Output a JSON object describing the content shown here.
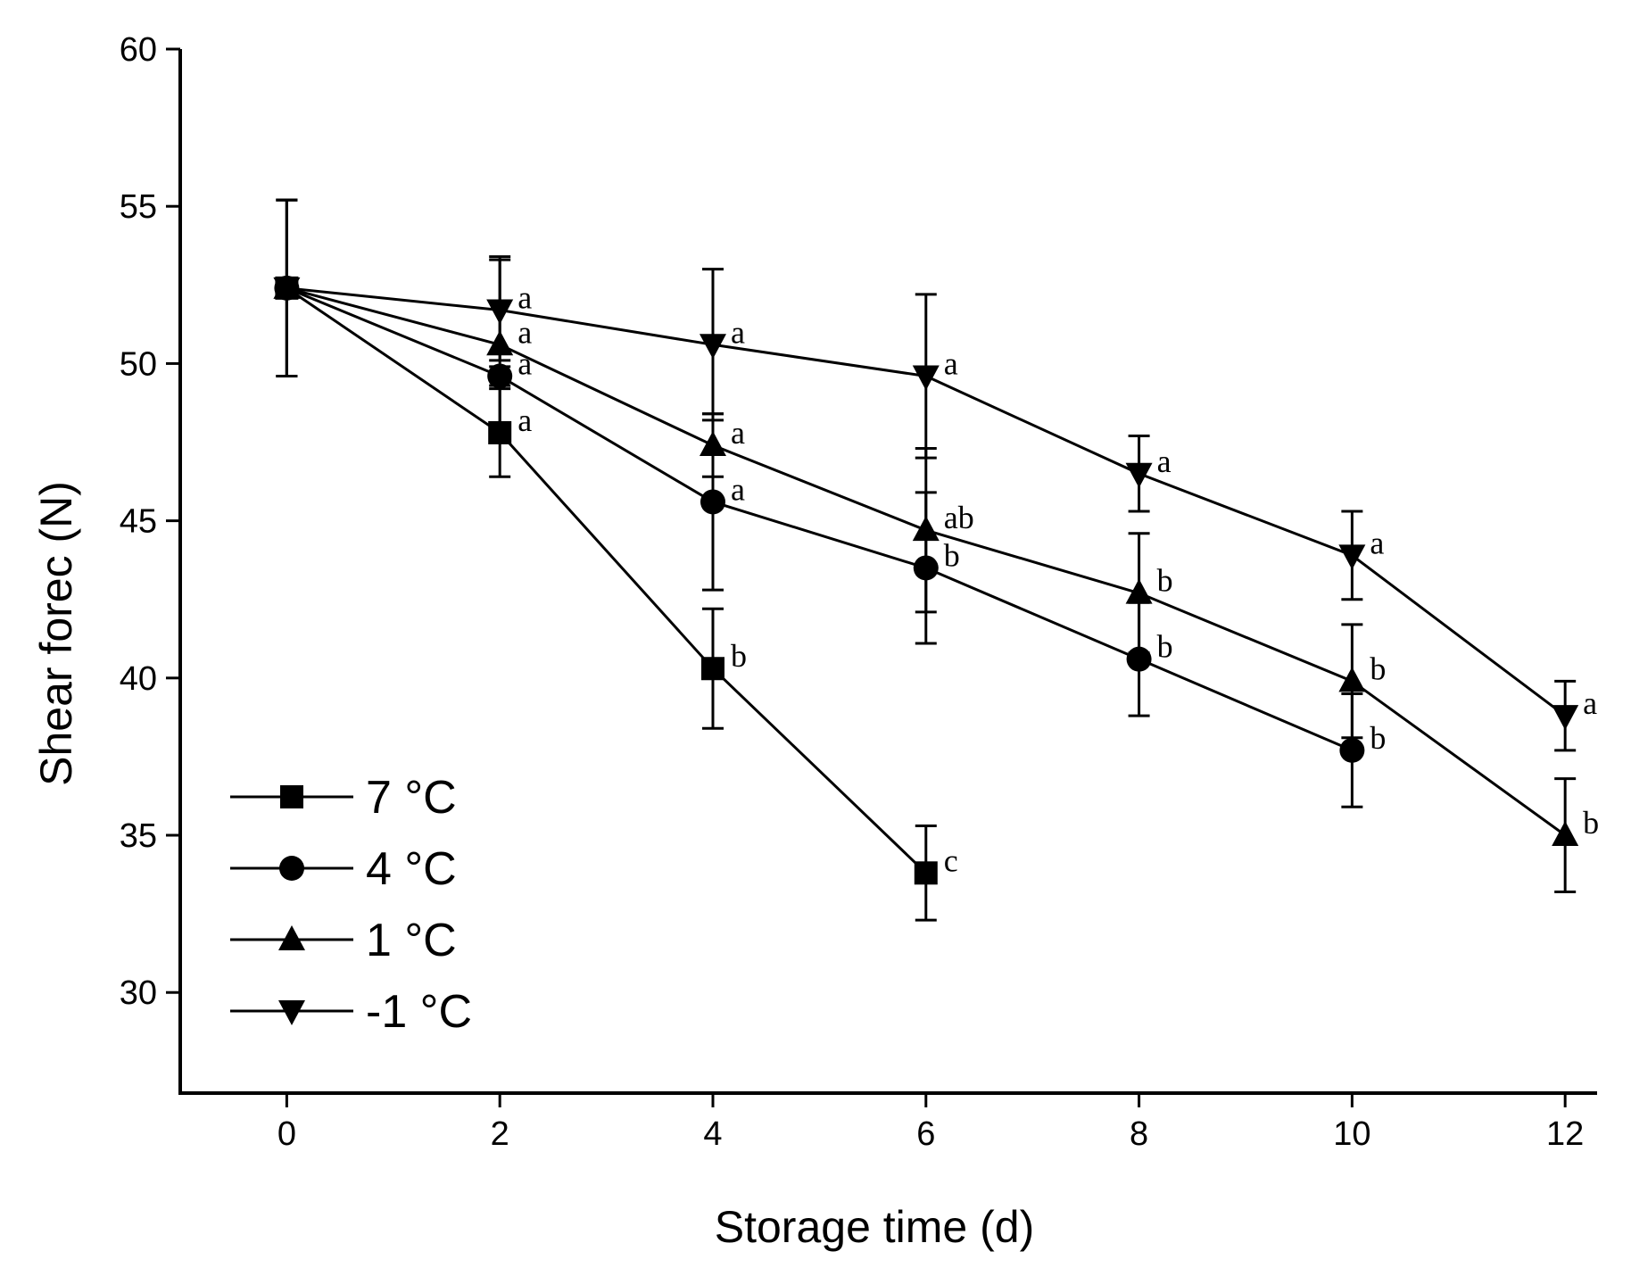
{
  "chart_data": {
    "type": "line",
    "title": "",
    "xlabel": "Storage time (d)",
    "ylabel": "Shear forec (N)",
    "xlim": [
      -1,
      12.3
    ],
    "ylim": [
      26.8,
      60
    ],
    "xticks": [
      0,
      2,
      4,
      6,
      8,
      10,
      12
    ],
    "yticks": [
      30,
      35,
      40,
      45,
      50,
      55,
      60
    ],
    "legend_position": "bottom-left",
    "series": [
      {
        "name": "7 °C",
        "marker": "square",
        "x": [
          0,
          2,
          4,
          6
        ],
        "y": [
          52.4,
          47.8,
          40.3,
          33.8
        ],
        "err": [
          2.8,
          1.4,
          1.9,
          1.5
        ],
        "labels": [
          "",
          "a",
          "b",
          "c"
        ]
      },
      {
        "name": "4 °C",
        "marker": "circle",
        "x": [
          0,
          2,
          4,
          6,
          8,
          10
        ],
        "y": [
          52.4,
          49.6,
          45.6,
          43.5,
          40.6,
          37.7
        ],
        "err": [
          2.8,
          0.3,
          2.8,
          2.4,
          1.8,
          1.8
        ],
        "labels": [
          "",
          "a",
          "a",
          "b",
          "b",
          "b"
        ]
      },
      {
        "name": "1 °C",
        "marker": "triangle-up",
        "x": [
          0,
          2,
          4,
          6,
          8,
          10,
          12
        ],
        "y": [
          52.4,
          50.6,
          47.4,
          44.7,
          42.7,
          39.9,
          35.0
        ],
        "err": [
          2.8,
          2.8,
          1.0,
          2.6,
          1.9,
          1.8,
          1.8
        ],
        "labels": [
          "",
          "a",
          "a",
          "ab",
          "b",
          "b",
          "b"
        ]
      },
      {
        "name": "-1 °C",
        "marker": "triangle-down",
        "x": [
          0,
          2,
          4,
          6,
          8,
          10,
          12
        ],
        "y": [
          52.4,
          51.7,
          50.6,
          49.6,
          46.5,
          43.9,
          38.8
        ],
        "err": [
          2.8,
          1.6,
          2.4,
          2.6,
          1.2,
          1.4,
          1.1
        ],
        "labels": [
          "",
          "a",
          "a",
          "a",
          "a",
          "a",
          "a"
        ]
      }
    ]
  }
}
